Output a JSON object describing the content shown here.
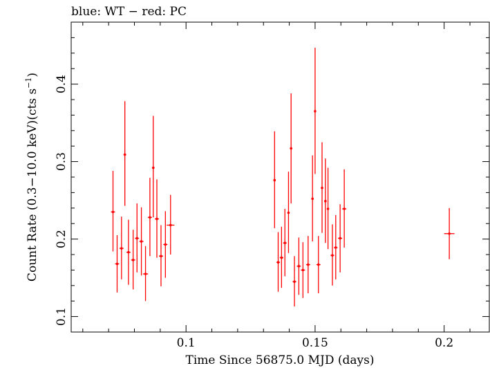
{
  "chart_data": {
    "type": "scatter",
    "title": "blue: WT − red: PC",
    "xlabel": "Time Since 56875.0 MJD (days)",
    "ylabel_main": "Count Rate (0.3−10.0 keV)(cts s",
    "ylabel_sup": "−1",
    "ylabel_close": ")",
    "xlim": [
      0.0555,
      0.2175
    ],
    "ylim": [
      0.08,
      0.48
    ],
    "x_ticks": [
      0.1,
      0.15,
      0.2
    ],
    "x_tick_labels": [
      "0.1",
      "0.15",
      "0.2"
    ],
    "y_ticks": [
      0.1,
      0.2,
      0.3,
      0.4
    ],
    "y_tick_labels": [
      "0.1",
      "0.2",
      "0.3",
      "0.4"
    ],
    "x_minor_step": 0.01,
    "y_minor_step": 0.02,
    "grid": false,
    "legend": "none",
    "series": [
      {
        "color": "#ff0000",
        "points": [
          {
            "x": 0.0717,
            "y": 0.235,
            "xerr": 0.0008,
            "ylo": 0.184,
            "yhi": 0.288
          },
          {
            "x": 0.0733,
            "y": 0.168,
            "xerr": 0.0008,
            "ylo": 0.131,
            "yhi": 0.205
          },
          {
            "x": 0.075,
            "y": 0.188,
            "xerr": 0.0008,
            "ylo": 0.148,
            "yhi": 0.229
          },
          {
            "x": 0.0763,
            "y": 0.309,
            "xerr": 0.0005,
            "ylo": 0.243,
            "yhi": 0.378
          },
          {
            "x": 0.0777,
            "y": 0.183,
            "xerr": 0.0008,
            "ylo": 0.141,
            "yhi": 0.225
          },
          {
            "x": 0.0795,
            "y": 0.173,
            "xerr": 0.0008,
            "ylo": 0.135,
            "yhi": 0.212
          },
          {
            "x": 0.081,
            "y": 0.201,
            "xerr": 0.0008,
            "ylo": 0.157,
            "yhi": 0.246
          },
          {
            "x": 0.0827,
            "y": 0.197,
            "xerr": 0.0008,
            "ylo": 0.153,
            "yhi": 0.241
          },
          {
            "x": 0.0843,
            "y": 0.155,
            "xerr": 0.001,
            "ylo": 0.12,
            "yhi": 0.191
          },
          {
            "x": 0.086,
            "y": 0.228,
            "xerr": 0.0008,
            "ylo": 0.178,
            "yhi": 0.279
          },
          {
            "x": 0.0873,
            "y": 0.292,
            "xerr": 0.0005,
            "ylo": 0.228,
            "yhi": 0.359
          },
          {
            "x": 0.0887,
            "y": 0.226,
            "xerr": 0.0008,
            "ylo": 0.176,
            "yhi": 0.277
          },
          {
            "x": 0.0903,
            "y": 0.178,
            "xerr": 0.0008,
            "ylo": 0.139,
            "yhi": 0.218
          },
          {
            "x": 0.092,
            "y": 0.193,
            "xerr": 0.0008,
            "ylo": 0.15,
            "yhi": 0.236
          },
          {
            "x": 0.094,
            "y": 0.218,
            "xerr": 0.0015,
            "ylo": 0.18,
            "yhi": 0.257
          },
          {
            "x": 0.1343,
            "y": 0.276,
            "xerr": 0.0004,
            "ylo": 0.214,
            "yhi": 0.339
          },
          {
            "x": 0.1357,
            "y": 0.17,
            "xerr": 0.0007,
            "ylo": 0.132,
            "yhi": 0.209
          },
          {
            "x": 0.137,
            "y": 0.176,
            "xerr": 0.0007,
            "ylo": 0.137,
            "yhi": 0.216
          },
          {
            "x": 0.1383,
            "y": 0.195,
            "xerr": 0.0007,
            "ylo": 0.152,
            "yhi": 0.239
          },
          {
            "x": 0.1397,
            "y": 0.234,
            "xerr": 0.0004,
            "ylo": 0.182,
            "yhi": 0.287
          },
          {
            "x": 0.1407,
            "y": 0.317,
            "xerr": 0.0004,
            "ylo": 0.246,
            "yhi": 0.388
          },
          {
            "x": 0.142,
            "y": 0.145,
            "xerr": 0.0007,
            "ylo": 0.113,
            "yhi": 0.178
          },
          {
            "x": 0.1437,
            "y": 0.165,
            "xerr": 0.0008,
            "ylo": 0.128,
            "yhi": 0.202
          },
          {
            "x": 0.1453,
            "y": 0.16,
            "xerr": 0.0008,
            "ylo": 0.124,
            "yhi": 0.196
          },
          {
            "x": 0.1473,
            "y": 0.167,
            "xerr": 0.0008,
            "ylo": 0.13,
            "yhi": 0.204
          },
          {
            "x": 0.149,
            "y": 0.252,
            "xerr": 0.0004,
            "ylo": 0.197,
            "yhi": 0.308
          },
          {
            "x": 0.15,
            "y": 0.365,
            "xerr": 0.0004,
            "ylo": 0.284,
            "yhi": 0.447
          },
          {
            "x": 0.1513,
            "y": 0.167,
            "xerr": 0.0008,
            "ylo": 0.13,
            "yhi": 0.204
          },
          {
            "x": 0.1527,
            "y": 0.266,
            "xerr": 0.0004,
            "ylo": 0.208,
            "yhi": 0.325
          },
          {
            "x": 0.154,
            "y": 0.249,
            "xerr": 0.0004,
            "ylo": 0.195,
            "yhi": 0.304
          },
          {
            "x": 0.155,
            "y": 0.239,
            "xerr": 0.0004,
            "ylo": 0.187,
            "yhi": 0.292
          },
          {
            "x": 0.1567,
            "y": 0.179,
            "xerr": 0.0007,
            "ylo": 0.14,
            "yhi": 0.219
          },
          {
            "x": 0.158,
            "y": 0.189,
            "xerr": 0.0007,
            "ylo": 0.148,
            "yhi": 0.231
          },
          {
            "x": 0.1597,
            "y": 0.201,
            "xerr": 0.0008,
            "ylo": 0.157,
            "yhi": 0.245
          },
          {
            "x": 0.1613,
            "y": 0.239,
            "xerr": 0.0008,
            "ylo": 0.189,
            "yhi": 0.29
          },
          {
            "x": 0.202,
            "y": 0.207,
            "xerr": 0.002,
            "ylo": 0.174,
            "yhi": 0.24
          }
        ]
      }
    ]
  }
}
